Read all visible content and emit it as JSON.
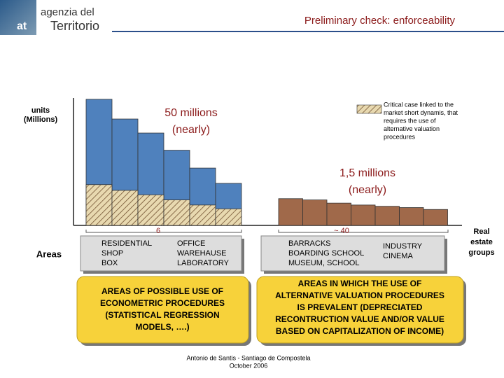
{
  "header": {
    "logo_small": "at",
    "logo_top": "agenzia del",
    "logo_bottom": "Territorio",
    "title": "Preliminary check: enforceability"
  },
  "chart_data": {
    "type": "bar",
    "y_label": [
      "units",
      "(Millions)"
    ],
    "ylim": [
      0,
      100
    ],
    "series": [
      {
        "name": null,
        "color": "#4f81bd",
        "group": 0,
        "values": [
          99,
          83.5,
          72.5,
          59,
          45,
          33
        ]
      },
      {
        "name": [
          "Critical case linked to the",
          "market short dynamis, that",
          "requires the use of",
          "alternative valuation",
          "procedures"
        ],
        "color": "#c8aa78",
        "hatched": true,
        "group": 0,
        "values": [
          32,
          27.5,
          24,
          20,
          16,
          13
        ]
      },
      {
        "name": null,
        "color": "#a0694a",
        "group": 1,
        "values": [
          21,
          20,
          17.5,
          16,
          15,
          14,
          12.5
        ]
      }
    ],
    "annotations": [
      [
        "50 millions",
        "(nearly)"
      ],
      [
        "1,5 millions",
        "(nearly)"
      ]
    ],
    "group_counts": [
      "6",
      "~ 40"
    ],
    "x_label": [
      "Real",
      "estate",
      "groups"
    ]
  },
  "areas_label": "Areas",
  "boxes": [
    {
      "left": [
        "RESIDENTIAL",
        "SHOP",
        "BOX"
      ],
      "right": [
        "OFFICE",
        "WAREHAUSE",
        "LABORATORY"
      ]
    },
    {
      "left": [
        "BARRACKS",
        "BOARDING SCHOOL",
        "MUSEUM, SCHOOL"
      ],
      "right": [
        "INDUSTRY",
        "CINEMA"
      ]
    }
  ],
  "notes": [
    [
      "AREAS OF POSSIBLE USE OF",
      "ECONOMETRIC PROCEDURES",
      "(STATISTICAL REGRESSION",
      "MODELS, ….)"
    ],
    [
      "AREAS IN WHICH THE USE OF",
      "ALTERNATIVE VALUATION PROCEDURES",
      "IS PREVALENT (DEPRECIATED",
      "RECONTRUCTION VALUE AND/OR VALUE",
      "BASED ON CAPITALIZATION OF INCOME)"
    ]
  ],
  "footer": [
    "Antonio de Santis - Santiago de Compostela",
    "October 2006"
  ]
}
